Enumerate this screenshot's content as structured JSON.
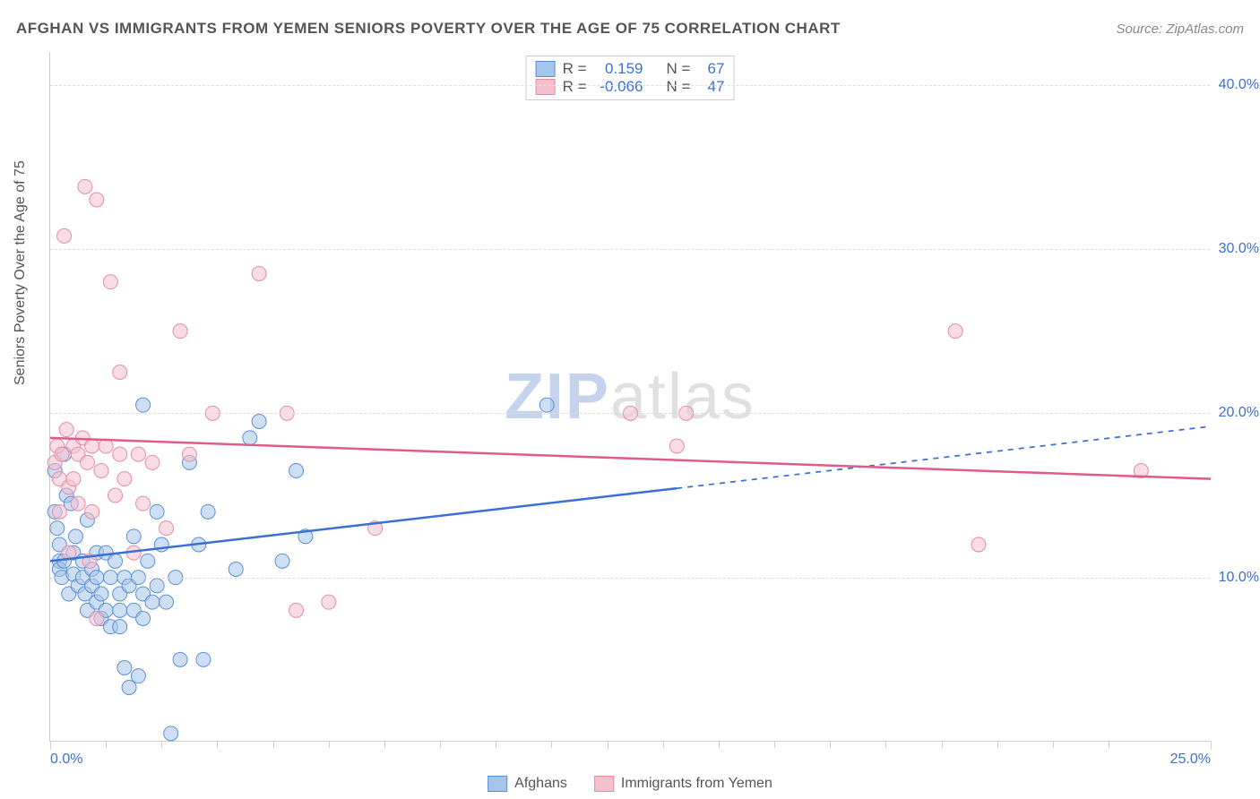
{
  "title": "AFGHAN VS IMMIGRANTS FROM YEMEN SENIORS POVERTY OVER THE AGE OF 75 CORRELATION CHART",
  "source": "Source: ZipAtlas.com",
  "ylabel": "Seniors Poverty Over the Age of 75",
  "watermark": {
    "part1": "ZIP",
    "part2": "atlas"
  },
  "chart": {
    "type": "scatter",
    "background_color": "#ffffff",
    "grid_color": "#dddddd",
    "axis_color": "#cccccc",
    "tick_label_color": "#3b6fd6",
    "label_color": "#555555",
    "xlim": [
      0,
      25
    ],
    "ylim": [
      0,
      42
    ],
    "xticks": [
      0,
      12.0,
      25.0
    ],
    "xtick_labels": [
      "0.0%",
      "",
      "25.0%"
    ],
    "x_minor_ticks": [
      1.2,
      2.4,
      3.6,
      4.8,
      6.0,
      7.2,
      8.4,
      9.6,
      10.8,
      13.2,
      14.4,
      15.6,
      16.8,
      18.0,
      19.2,
      20.4,
      21.6,
      22.8
    ],
    "yticks": [
      10,
      20,
      30,
      40
    ],
    "ytick_labels": [
      "10.0%",
      "20.0%",
      "30.0%",
      "40.0%"
    ],
    "marker_radius": 8,
    "marker_opacity": 0.55,
    "series": [
      {
        "name": "Afghans",
        "fill": "#a7c4ea",
        "stroke": "#5a8fd6",
        "line_color": "#3b6fd6",
        "line_width": 2.5,
        "trend": {
          "x1": 0,
          "y1": 11.0,
          "x2": 25,
          "y2": 19.2,
          "solid_until_x": 13.5
        },
        "R": "0.159",
        "N": "67",
        "points": [
          [
            0.1,
            16.5
          ],
          [
            0.1,
            14.0
          ],
          [
            0.15,
            13.0
          ],
          [
            0.2,
            12.0
          ],
          [
            0.2,
            11.0
          ],
          [
            0.2,
            10.5
          ],
          [
            0.25,
            10.0
          ],
          [
            0.3,
            17.5
          ],
          [
            0.3,
            11.0
          ],
          [
            0.35,
            15.0
          ],
          [
            0.4,
            9.0
          ],
          [
            0.45,
            14.5
          ],
          [
            0.5,
            11.5
          ],
          [
            0.5,
            10.2
          ],
          [
            0.55,
            12.5
          ],
          [
            0.6,
            9.5
          ],
          [
            0.7,
            10.0
          ],
          [
            0.7,
            11.0
          ],
          [
            0.75,
            9.0
          ],
          [
            0.8,
            13.5
          ],
          [
            0.8,
            8.0
          ],
          [
            0.9,
            9.5
          ],
          [
            0.9,
            10.5
          ],
          [
            1.0,
            11.5
          ],
          [
            1.0,
            10.0
          ],
          [
            1.0,
            8.5
          ],
          [
            1.1,
            9.0
          ],
          [
            1.1,
            7.5
          ],
          [
            1.2,
            11.5
          ],
          [
            1.2,
            8.0
          ],
          [
            1.3,
            10.0
          ],
          [
            1.3,
            7.0
          ],
          [
            1.4,
            11.0
          ],
          [
            1.5,
            9.0
          ],
          [
            1.5,
            8.0
          ],
          [
            1.5,
            7.0
          ],
          [
            1.6,
            10.0
          ],
          [
            1.6,
            4.5
          ],
          [
            1.7,
            9.5
          ],
          [
            1.7,
            3.3
          ],
          [
            1.8,
            12.5
          ],
          [
            1.8,
            8.0
          ],
          [
            1.9,
            10.0
          ],
          [
            1.9,
            4.0
          ],
          [
            2.0,
            20.5
          ],
          [
            2.0,
            9.0
          ],
          [
            2.0,
            7.5
          ],
          [
            2.1,
            11.0
          ],
          [
            2.2,
            8.5
          ],
          [
            2.3,
            14.0
          ],
          [
            2.3,
            9.5
          ],
          [
            2.4,
            12.0
          ],
          [
            2.5,
            8.5
          ],
          [
            2.6,
            0.5
          ],
          [
            2.7,
            10.0
          ],
          [
            2.8,
            5.0
          ],
          [
            3.0,
            17.0
          ],
          [
            3.2,
            12.0
          ],
          [
            3.3,
            5.0
          ],
          [
            3.4,
            14.0
          ],
          [
            4.3,
            18.5
          ],
          [
            4.5,
            19.5
          ],
          [
            5.3,
            16.5
          ],
          [
            5.5,
            12.5
          ],
          [
            10.7,
            20.5
          ],
          [
            5.0,
            11.0
          ],
          [
            4.0,
            10.5
          ]
        ]
      },
      {
        "name": "Immigrants from Yemen",
        "fill": "#f4c0ce",
        "stroke": "#e68aa5",
        "line_color": "#e05a8a",
        "line_width": 2.5,
        "trend": {
          "x1": 0,
          "y1": 18.5,
          "x2": 25,
          "y2": 16.0,
          "solid_until_x": 25
        },
        "R": "-0.066",
        "N": "47",
        "points": [
          [
            0.1,
            17.0
          ],
          [
            0.15,
            18.0
          ],
          [
            0.2,
            16.0
          ],
          [
            0.2,
            14.0
          ],
          [
            0.25,
            17.5
          ],
          [
            0.3,
            30.8
          ],
          [
            0.35,
            19.0
          ],
          [
            0.4,
            15.5
          ],
          [
            0.4,
            11.5
          ],
          [
            0.5,
            18.0
          ],
          [
            0.5,
            16.0
          ],
          [
            0.6,
            17.5
          ],
          [
            0.6,
            14.5
          ],
          [
            0.7,
            18.5
          ],
          [
            0.75,
            33.8
          ],
          [
            0.8,
            17.0
          ],
          [
            0.85,
            11.0
          ],
          [
            0.9,
            18.0
          ],
          [
            0.9,
            14.0
          ],
          [
            1.0,
            33.0
          ],
          [
            1.0,
            7.5
          ],
          [
            1.1,
            16.5
          ],
          [
            1.2,
            18.0
          ],
          [
            1.3,
            28.0
          ],
          [
            1.4,
            15.0
          ],
          [
            1.5,
            22.5
          ],
          [
            1.5,
            17.5
          ],
          [
            1.6,
            16.0
          ],
          [
            1.8,
            11.5
          ],
          [
            1.9,
            17.5
          ],
          [
            2.0,
            14.5
          ],
          [
            2.2,
            17.0
          ],
          [
            2.5,
            13.0
          ],
          [
            2.8,
            25.0
          ],
          [
            3.0,
            17.5
          ],
          [
            3.5,
            20.0
          ],
          [
            4.5,
            28.5
          ],
          [
            5.1,
            20.0
          ],
          [
            5.3,
            8.0
          ],
          [
            6.0,
            8.5
          ],
          [
            7.0,
            13.0
          ],
          [
            12.5,
            20.0
          ],
          [
            13.5,
            18.0
          ],
          [
            13.7,
            20.0
          ],
          [
            19.5,
            25.0
          ],
          [
            20.0,
            12.0
          ],
          [
            23.5,
            16.5
          ]
        ]
      }
    ]
  },
  "stats_legend": {
    "r_label": "R =",
    "n_label": "N ="
  },
  "bottom_legend": {
    "s1": "Afghans",
    "s2": "Immigrants from Yemen"
  }
}
